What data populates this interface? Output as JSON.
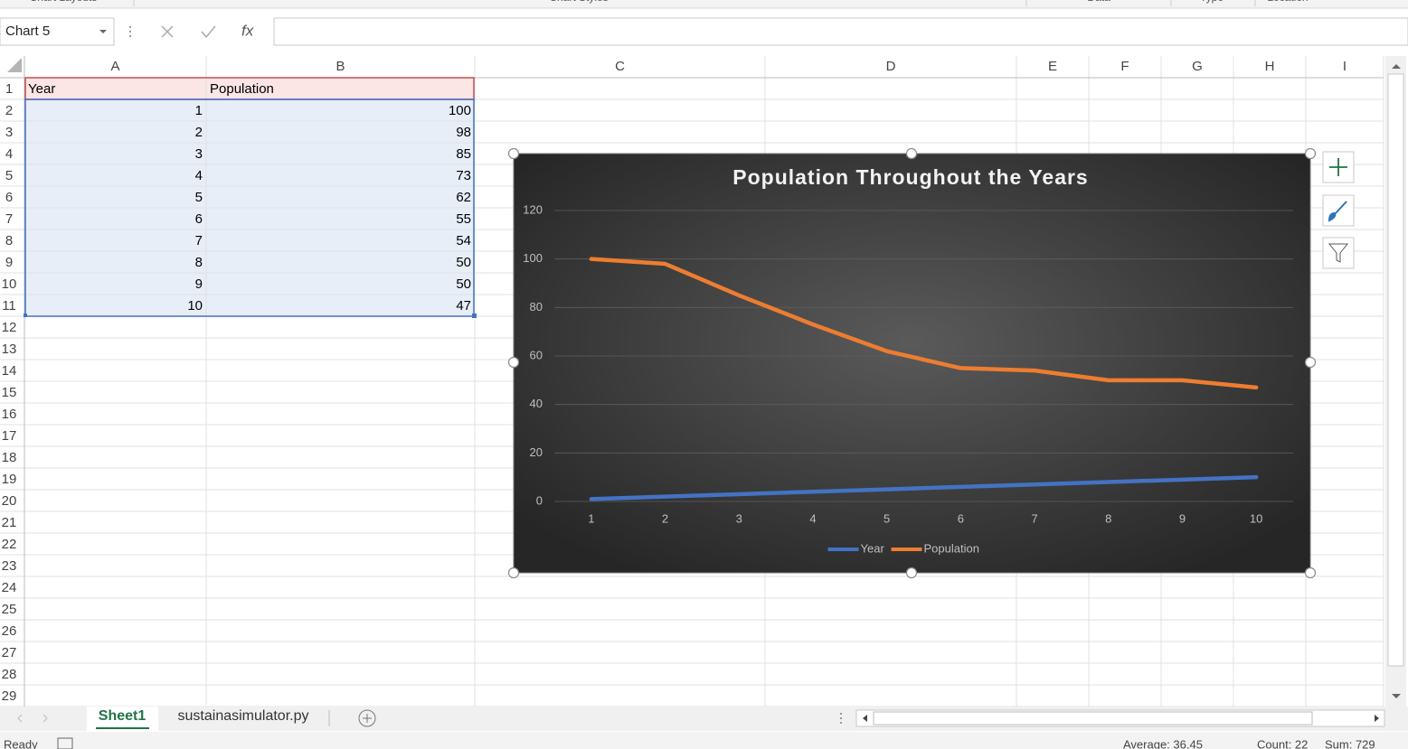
{
  "ribbon_groups": [
    "Chart Layouts",
    "Chart Styles",
    "Data",
    "Type",
    "Location"
  ],
  "name_box": "Chart 5",
  "function_label": "fx",
  "columns": [
    "A",
    "B",
    "C",
    "D",
    "E",
    "F",
    "G",
    "H",
    "I"
  ],
  "row_numbers": [
    1,
    2,
    3,
    4,
    5,
    6,
    7,
    8,
    9,
    10,
    11,
    12,
    13,
    14,
    15,
    16,
    17,
    18,
    19,
    20,
    21,
    22,
    23,
    24,
    25,
    26,
    27,
    28,
    29
  ],
  "sheet": {
    "rows": [
      [
        "Year",
        "Population"
      ],
      [
        1,
        100
      ],
      [
        2,
        98
      ],
      [
        3,
        85
      ],
      [
        4,
        73
      ],
      [
        5,
        62
      ],
      [
        6,
        55
      ],
      [
        7,
        54
      ],
      [
        8,
        50
      ],
      [
        9,
        50
      ],
      [
        10,
        47
      ]
    ]
  },
  "chart_data": {
    "type": "line",
    "title": "Population Throughout the Years",
    "categories": [
      1,
      2,
      3,
      4,
      5,
      6,
      7,
      8,
      9,
      10
    ],
    "series": [
      {
        "name": "Year",
        "color": "#4472c4",
        "values": [
          1,
          2,
          3,
          4,
          5,
          6,
          7,
          8,
          9,
          10
        ]
      },
      {
        "name": "Population",
        "color": "#ed7d31",
        "values": [
          100,
          98,
          85,
          73,
          62,
          55,
          54,
          50,
          50,
          47
        ]
      }
    ],
    "ylim": [
      0,
      120
    ],
    "yticks": [
      0,
      20,
      40,
      60,
      80,
      100,
      120
    ],
    "grid": true,
    "legend": "bottom"
  },
  "tabs": [
    "Sheet1",
    "sustainasimulator.py"
  ],
  "status": {
    "mode": "Ready",
    "average": "Average: 36.45",
    "count": "Count: 22",
    "sum": "Sum: 729"
  }
}
